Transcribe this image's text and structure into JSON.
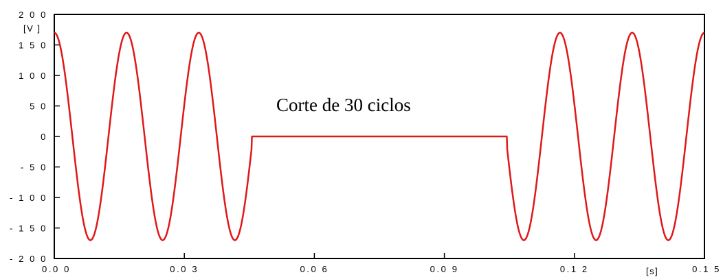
{
  "chart_data": {
    "type": "line",
    "x_unit": "[s]",
    "y_unit": "[V ]",
    "xlim": [
      0,
      0.15
    ],
    "ylim": [
      -200,
      200
    ],
    "x_ticks": [
      {
        "value": 0.0,
        "label": "0.0 0"
      },
      {
        "value": 0.03,
        "label": "0.0 3"
      },
      {
        "value": 0.06,
        "label": "0.0 6"
      },
      {
        "value": 0.09,
        "label": "0.0 9"
      },
      {
        "value": 0.12,
        "label": "0.1 2"
      },
      {
        "value": 0.15,
        "label": "0.1 5"
      }
    ],
    "y_ticks": [
      {
        "value": 200,
        "label": "2 0 0"
      },
      {
        "value": 150,
        "label": "1 5 0"
      },
      {
        "value": 100,
        "label": "1 0 0"
      },
      {
        "value": 50,
        "label": "5 0"
      },
      {
        "value": 0,
        "label": "0"
      },
      {
        "value": -50,
        "label": "- 5 0"
      },
      {
        "value": -100,
        "label": "- 1 0 0"
      },
      {
        "value": -150,
        "label": "- 1 5 0"
      },
      {
        "value": -200,
        "label": "- 2 0 0"
      }
    ],
    "annotation": "Corte de 30 ciclos",
    "series": [
      {
        "color": "#e01818",
        "waveform": {
          "amplitude": 170,
          "frequency_hz": 60,
          "phase": "cosine",
          "interruption_start": 0.0455,
          "interruption_end": 0.1045
        }
      }
    ],
    "grid": false,
    "legend": "none"
  }
}
